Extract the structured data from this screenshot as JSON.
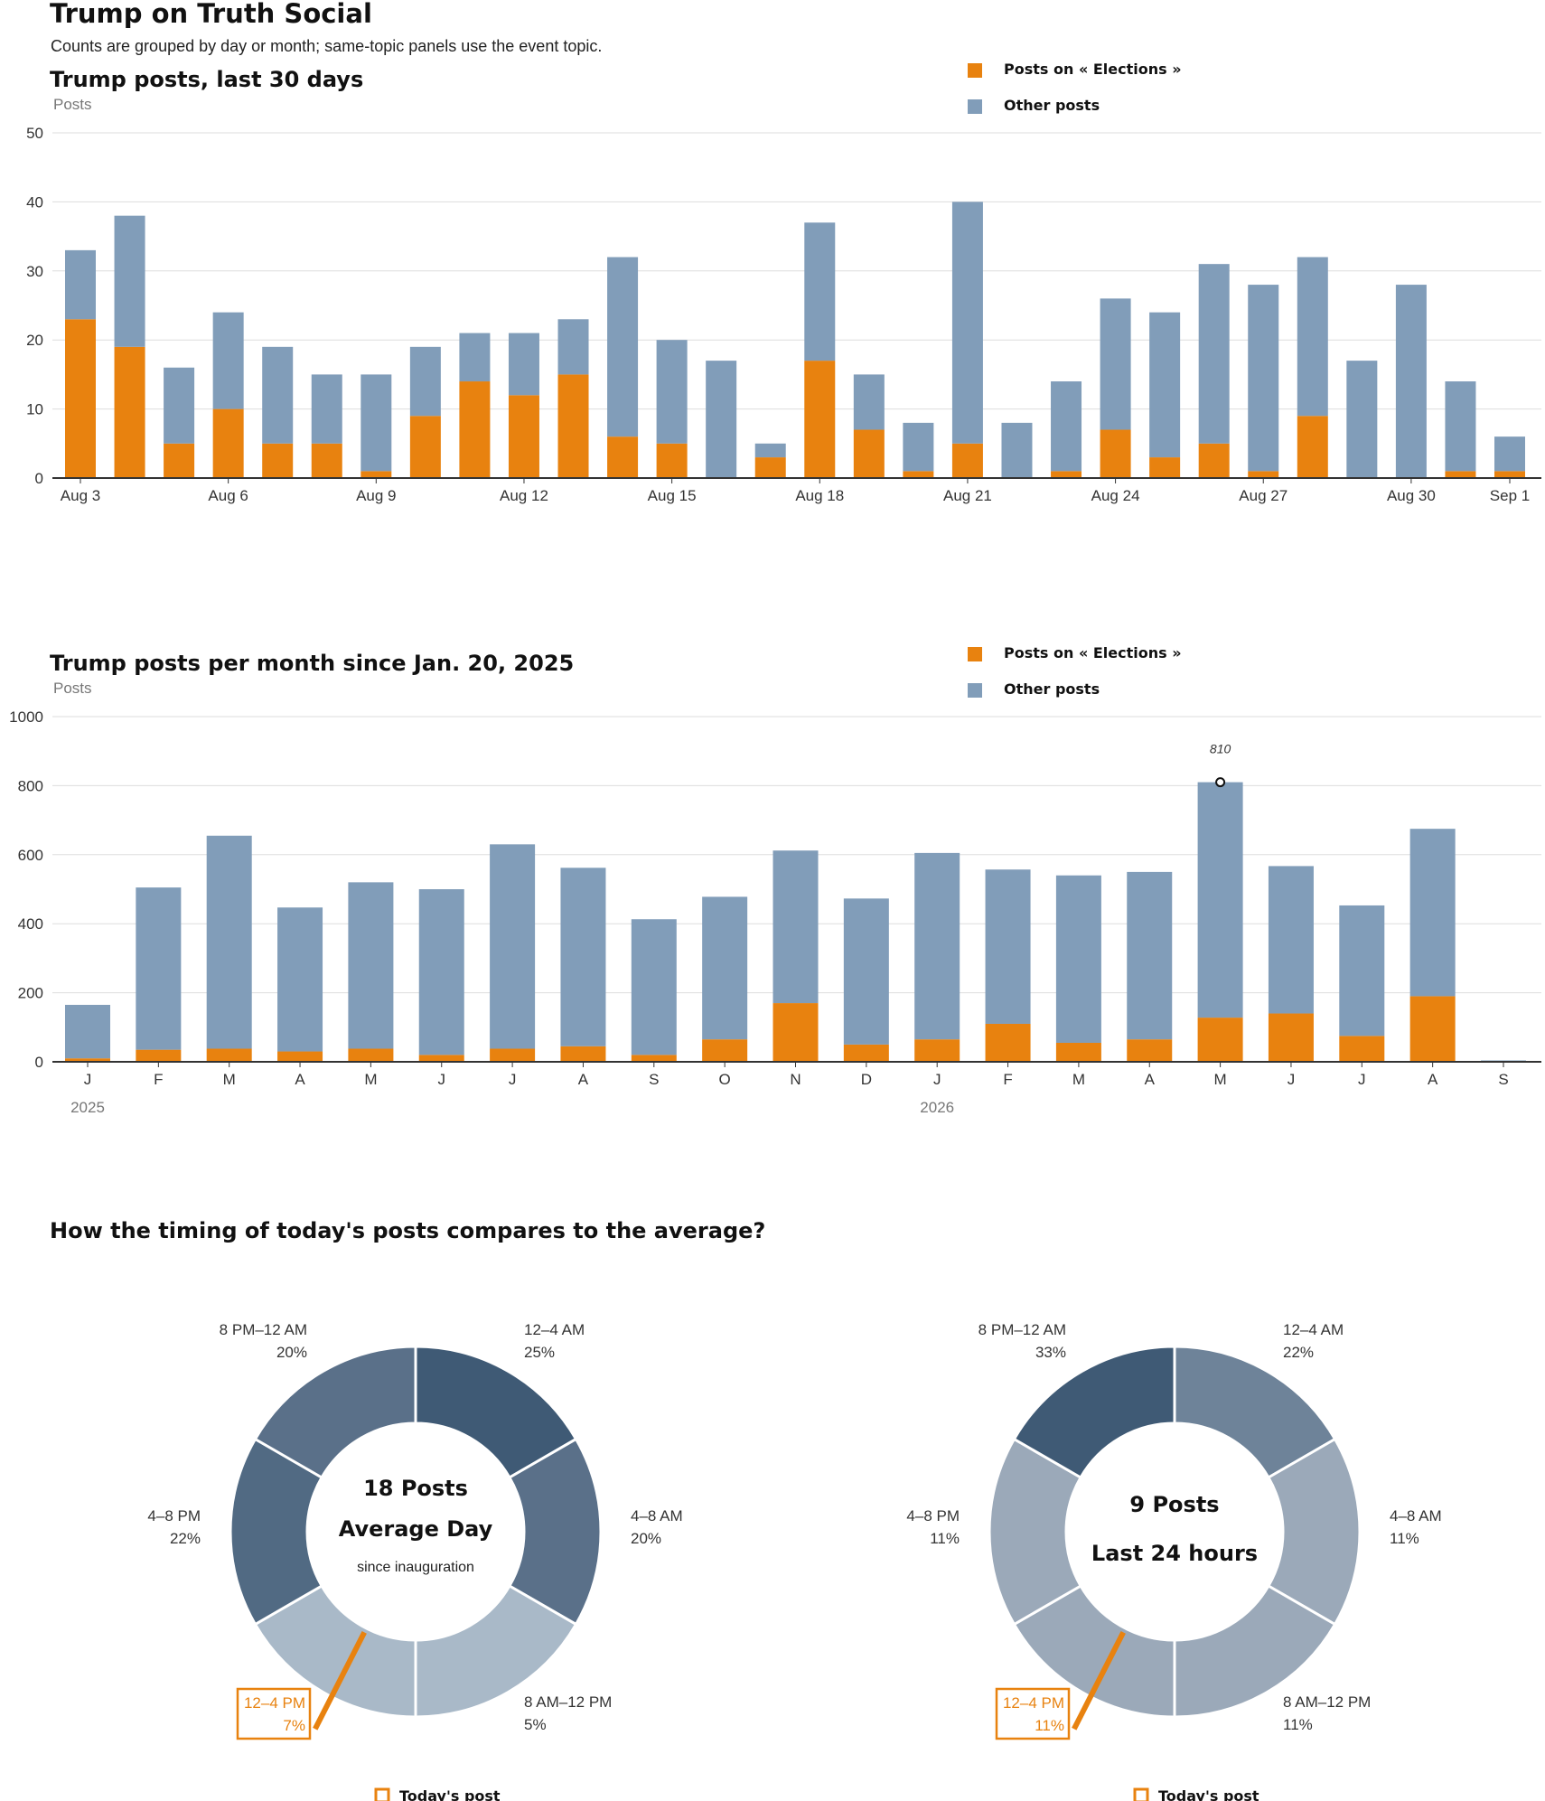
{
  "page": {
    "title": "Trump on Truth Social",
    "subtitle": "Counts are grouped by day or month; same-topic panels use the event topic."
  },
  "colors": {
    "topic": "#e8820f",
    "other": "#819db9",
    "grid": "#dddddd",
    "axis": "#333333",
    "today_marker": "#e8820f"
  },
  "legend": {
    "topic_label": "Posts on « Elections »",
    "other_label": "Other posts"
  },
  "chart_data": [
    {
      "type": "bar",
      "stacked": true,
      "title": "Trump posts, last 30 days",
      "ylabel": "Posts",
      "ylim": [
        0,
        50
      ],
      "yticks": [
        0,
        10,
        20,
        30,
        40,
        50
      ],
      "grid": true,
      "legend_position": "top-right",
      "categories": [
        "Aug 3",
        "Aug 4",
        "Aug 5",
        "Aug 6",
        "Aug 7",
        "Aug 8",
        "Aug 9",
        "Aug 10",
        "Aug 11",
        "Aug 12",
        "Aug 13",
        "Aug 14",
        "Aug 15",
        "Aug 16",
        "Aug 17",
        "Aug 18",
        "Aug 19",
        "Aug 20",
        "Aug 21",
        "Aug 22",
        "Aug 23",
        "Aug 24",
        "Aug 25",
        "Aug 26",
        "Aug 27",
        "Aug 28",
        "Aug 29",
        "Aug 30",
        "Aug 31",
        "Sep 1"
      ],
      "tick_labels": [
        {
          "index": 0,
          "text": "Aug 3"
        },
        {
          "index": 3,
          "text": "Aug 6"
        },
        {
          "index": 6,
          "text": "Aug 9"
        },
        {
          "index": 9,
          "text": "Aug 12"
        },
        {
          "index": 12,
          "text": "Aug 15"
        },
        {
          "index": 15,
          "text": "Aug 18"
        },
        {
          "index": 18,
          "text": "Aug 21"
        },
        {
          "index": 21,
          "text": "Aug 24"
        },
        {
          "index": 24,
          "text": "Aug 27"
        },
        {
          "index": 27,
          "text": "Aug 30"
        },
        {
          "index": 29,
          "text": "Sep 1"
        }
      ],
      "series": [
        {
          "name": "Posts on « Elections »",
          "values": [
            23,
            19,
            5,
            10,
            5,
            5,
            1,
            9,
            14,
            12,
            15,
            6,
            5,
            0,
            3,
            17,
            7,
            1,
            5,
            0,
            1,
            7,
            3,
            5,
            1,
            9,
            0,
            0,
            1,
            1
          ]
        },
        {
          "name": "Other posts",
          "values": [
            10,
            19,
            11,
            14,
            14,
            10,
            14,
            10,
            7,
            9,
            8,
            26,
            15,
            17,
            2,
            20,
            8,
            7,
            35,
            8,
            13,
            19,
            21,
            26,
            27,
            23,
            17,
            28,
            13,
            5
          ]
        }
      ]
    },
    {
      "type": "bar",
      "stacked": true,
      "title": "Trump posts per month since Jan. 20, 2025",
      "ylabel": "Posts",
      "ylim": [
        0,
        1000
      ],
      "yticks": [
        0,
        200,
        400,
        600,
        800,
        1000
      ],
      "grid": true,
      "legend_position": "top-right",
      "categories": [
        "J",
        "F",
        "M",
        "A",
        "M",
        "J",
        "J",
        "A",
        "S",
        "O",
        "N",
        "D",
        "J",
        "F",
        "M",
        "A",
        "M",
        "J",
        "J",
        "A",
        "S"
      ],
      "year_labels": [
        {
          "index": 0,
          "text": "2025"
        },
        {
          "index": 12,
          "text": "2026"
        }
      ],
      "annotation": {
        "index": 16,
        "text": "810"
      },
      "series": [
        {
          "name": "Posts on « Elections »",
          "values": [
            10,
            35,
            38,
            30,
            38,
            20,
            38,
            45,
            20,
            65,
            170,
            50,
            65,
            110,
            55,
            65,
            128,
            140,
            75,
            190,
            0
          ]
        },
        {
          "name": "Other posts",
          "values": [
            155,
            470,
            617,
            417,
            482,
            480,
            592,
            517,
            393,
            413,
            442,
            423,
            540,
            447,
            485,
            485,
            682,
            427,
            378,
            485,
            4
          ]
        }
      ]
    },
    {
      "type": "pie",
      "donut": true,
      "title": "How the timing of today's posts compares to the average?",
      "center_lines": [
        "18 Posts",
        "Average Day",
        "since inauguration"
      ],
      "segments": [
        {
          "label": "12–4 AM",
          "value": 25,
          "text": "25%",
          "color": "#3f5a75"
        },
        {
          "label": "4–8 AM",
          "value": 20,
          "text": "20%",
          "color": "#5a7089"
        },
        {
          "label": "8 AM–12 PM",
          "value": 5,
          "text": "5%",
          "color": "#a9b9c8"
        },
        {
          "label": "12–4 PM",
          "value": 7,
          "text": "7%",
          "color": "#a9b9c8",
          "highlight": true
        },
        {
          "label": "4–8 PM",
          "value": 22,
          "text": "22%",
          "color": "#516a83"
        },
        {
          "label": "8 PM–12 AM",
          "value": 20,
          "text": "20%",
          "color": "#5a7089"
        }
      ],
      "legend_label": "Today's post"
    },
    {
      "type": "pie",
      "donut": true,
      "center_lines": [
        "9 Posts",
        "Last 24 hours"
      ],
      "segments": [
        {
          "label": "12–4 AM",
          "value": 22,
          "text": "22%",
          "color": "#6e8399"
        },
        {
          "label": "4–8 AM",
          "value": 11,
          "text": "11%",
          "color": "#9ba9b9"
        },
        {
          "label": "8 AM–12 PM",
          "value": 11,
          "text": "11%",
          "color": "#9ba9b9"
        },
        {
          "label": "12–4 PM",
          "value": 11,
          "text": "11%",
          "color": "#9ba9b9",
          "highlight": true
        },
        {
          "label": "4–8 PM",
          "value": 11,
          "text": "11%",
          "color": "#9ba9b9"
        },
        {
          "label": "8 PM–12 AM",
          "value": 33,
          "text": "33%",
          "color": "#3f5a75"
        }
      ],
      "legend_label": "Today's post"
    }
  ]
}
